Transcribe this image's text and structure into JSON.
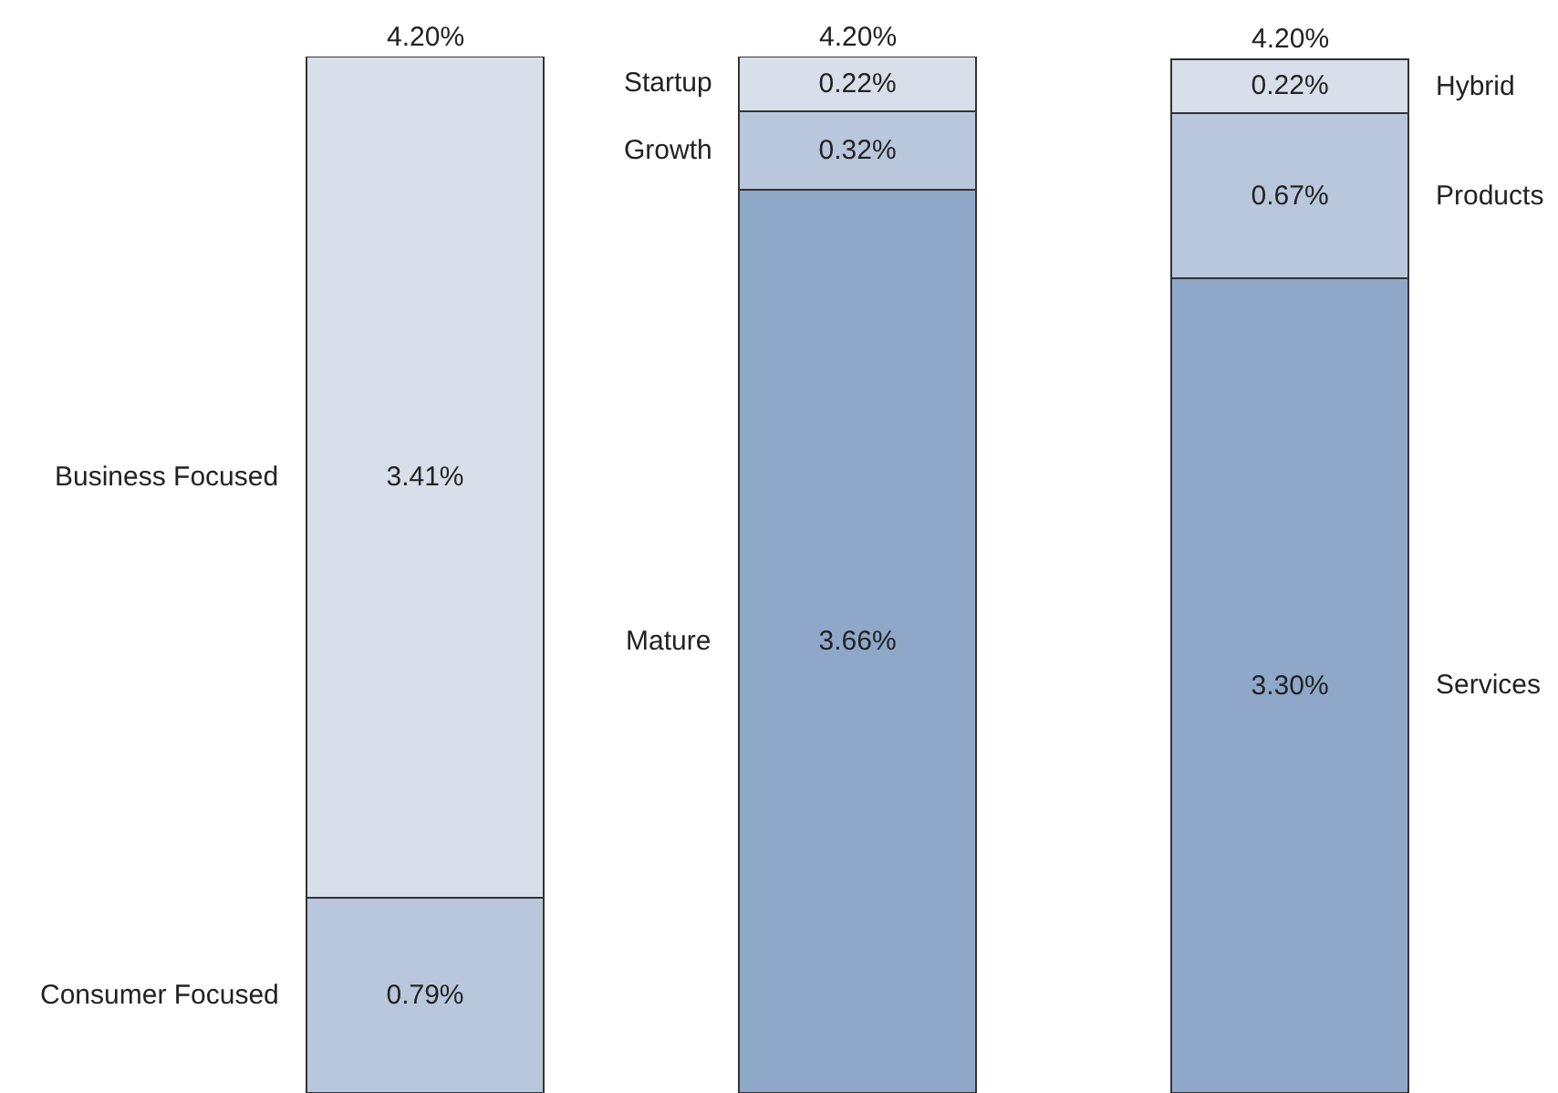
{
  "chart_data": {
    "type": "bar",
    "stacked": true,
    "categories": [
      null,
      null,
      null
    ],
    "series": [
      {
        "name": "Consumer Focused",
        "color": "#b8c7db",
        "values": [
          0.79,
          null,
          null
        ],
        "value_labels": [
          "0.79%",
          null,
          null
        ]
      },
      {
        "name": "Business Focused",
        "color": "#d9dfea",
        "values": [
          3.41,
          null,
          null
        ],
        "value_labels": [
          "3.41%",
          null,
          null
        ]
      },
      {
        "name": "Mature",
        "color": "#8fa7c8",
        "values": [
          null,
          3.66,
          null
        ],
        "value_labels": [
          null,
          "3.66%",
          null
        ]
      },
      {
        "name": "Growth",
        "color": "#b8c7db",
        "values": [
          null,
          0.32,
          null
        ],
        "value_labels": [
          null,
          "0.32%",
          null
        ]
      },
      {
        "name": "Startup",
        "color": "#d9dfea",
        "values": [
          null,
          0.22,
          null
        ],
        "value_labels": [
          null,
          "0.22%",
          null
        ]
      },
      {
        "name": "Services",
        "color": "#8fa7c8",
        "values": [
          null,
          null,
          3.3
        ],
        "value_labels": [
          null,
          null,
          "3.30%"
        ]
      },
      {
        "name": "Products",
        "color": "#b8c7db",
        "values": [
          null,
          null,
          0.67
        ],
        "value_labels": [
          null,
          null,
          "0.67%"
        ]
      },
      {
        "name": "Hybrid",
        "color": "#d9dfea",
        "values": [
          null,
          null,
          0.22
        ],
        "value_labels": [
          null,
          null,
          "0.22%"
        ]
      }
    ],
    "totals": [
      "4.20%",
      "4.20%",
      "4.20%"
    ]
  }
}
